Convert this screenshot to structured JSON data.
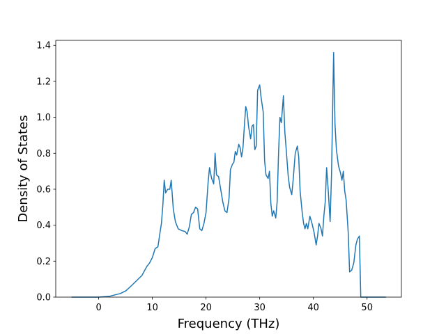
{
  "chart_data": {
    "type": "line",
    "xlabel": "Frequency (THz)",
    "ylabel": "Density of States",
    "x": [
      -5.06,
      0,
      2.08,
      4.03,
      5.06,
      5.97,
      7.01,
      8.05,
      8.96,
      9.48,
      10.0,
      10.52,
      11.04,
      11.43,
      11.69,
      11.95,
      12.21,
      12.47,
      12.86,
      13.25,
      13.51,
      13.9,
      14.29,
      14.81,
      15.45,
      16.1,
      16.49,
      16.88,
      17.27,
      17.66,
      18.05,
      18.44,
      18.83,
      19.22,
      19.61,
      20.0,
      20.39,
      20.65,
      21.04,
      21.43,
      21.69,
      21.95,
      22.34,
      22.73,
      23.12,
      23.51,
      23.9,
      24.29,
      24.55,
      24.94,
      25.19,
      25.45,
      25.71,
      26.1,
      26.36,
      26.62,
      26.88,
      27.14,
      27.4,
      27.66,
      27.92,
      28.31,
      28.57,
      28.83,
      29.09,
      29.35,
      29.61,
      30.0,
      30.26,
      30.65,
      30.91,
      31.17,
      31.56,
      31.82,
      32.08,
      32.34,
      32.6,
      32.99,
      33.25,
      33.51,
      33.77,
      34.03,
      34.42,
      34.68,
      34.94,
      35.32,
      35.58,
      35.97,
      36.23,
      36.62,
      37.01,
      37.27,
      37.53,
      37.92,
      38.18,
      38.44,
      38.7,
      38.96,
      39.35,
      39.74,
      40.13,
      40.52,
      40.78,
      41.04,
      41.43,
      41.69,
      41.95,
      42.21,
      42.47,
      42.73,
      43.12,
      43.38,
      43.77,
      44.03,
      44.29,
      44.68,
      45.06,
      45.32,
      45.58,
      45.84,
      46.1,
      46.49,
      46.75,
      47.14,
      47.53,
      47.92,
      48.18,
      48.57,
      48.83,
      53.51
    ],
    "series": [
      {
        "color": "#1f77b4",
        "values": [
          0,
          0,
          0.005,
          0.02,
          0.035,
          0.06,
          0.09,
          0.12,
          0.17,
          0.19,
          0.22,
          0.27,
          0.28,
          0.36,
          0.41,
          0.51,
          0.65,
          0.58,
          0.6,
          0.6,
          0.65,
          0.49,
          0.42,
          0.38,
          0.37,
          0.365,
          0.35,
          0.39,
          0.46,
          0.47,
          0.5,
          0.49,
          0.38,
          0.37,
          0.41,
          0.47,
          0.64,
          0.72,
          0.66,
          0.63,
          0.8,
          0.68,
          0.67,
          0.6,
          0.53,
          0.48,
          0.47,
          0.55,
          0.71,
          0.74,
          0.75,
          0.81,
          0.79,
          0.85,
          0.83,
          0.78,
          0.83,
          0.95,
          1.06,
          1.03,
          0.95,
          0.88,
          0.95,
          0.96,
          0.82,
          0.84,
          1.15,
          1.18,
          1.11,
          1.03,
          0.76,
          0.68,
          0.66,
          0.7,
          0.52,
          0.45,
          0.48,
          0.44,
          0.53,
          0.8,
          1.0,
          0.97,
          1.12,
          0.92,
          0.82,
          0.67,
          0.61,
          0.57,
          0.65,
          0.8,
          0.84,
          0.78,
          0.59,
          0.47,
          0.41,
          0.38,
          0.41,
          0.38,
          0.45,
          0.41,
          0.36,
          0.29,
          0.34,
          0.41,
          0.38,
          0.34,
          0.45,
          0.53,
          0.72,
          0.61,
          0.42,
          0.68,
          1.36,
          0.96,
          0.82,
          0.73,
          0.69,
          0.65,
          0.7,
          0.59,
          0.54,
          0.36,
          0.14,
          0.15,
          0.19,
          0.29,
          0.32,
          0.34,
          0,
          0
        ]
      }
    ],
    "xlim": [
      -8.0,
      56.4
    ],
    "xticks": [
      0,
      10,
      20,
      30,
      40,
      50
    ],
    "ylim": [
      0,
      1.428
    ],
    "yticks": [
      {
        "value": 0,
        "label": "0.0"
      },
      0.2,
      0.4,
      0.6,
      0.8,
      {
        "value": 1,
        "label": "1.0"
      },
      1.2,
      1.4
    ]
  }
}
